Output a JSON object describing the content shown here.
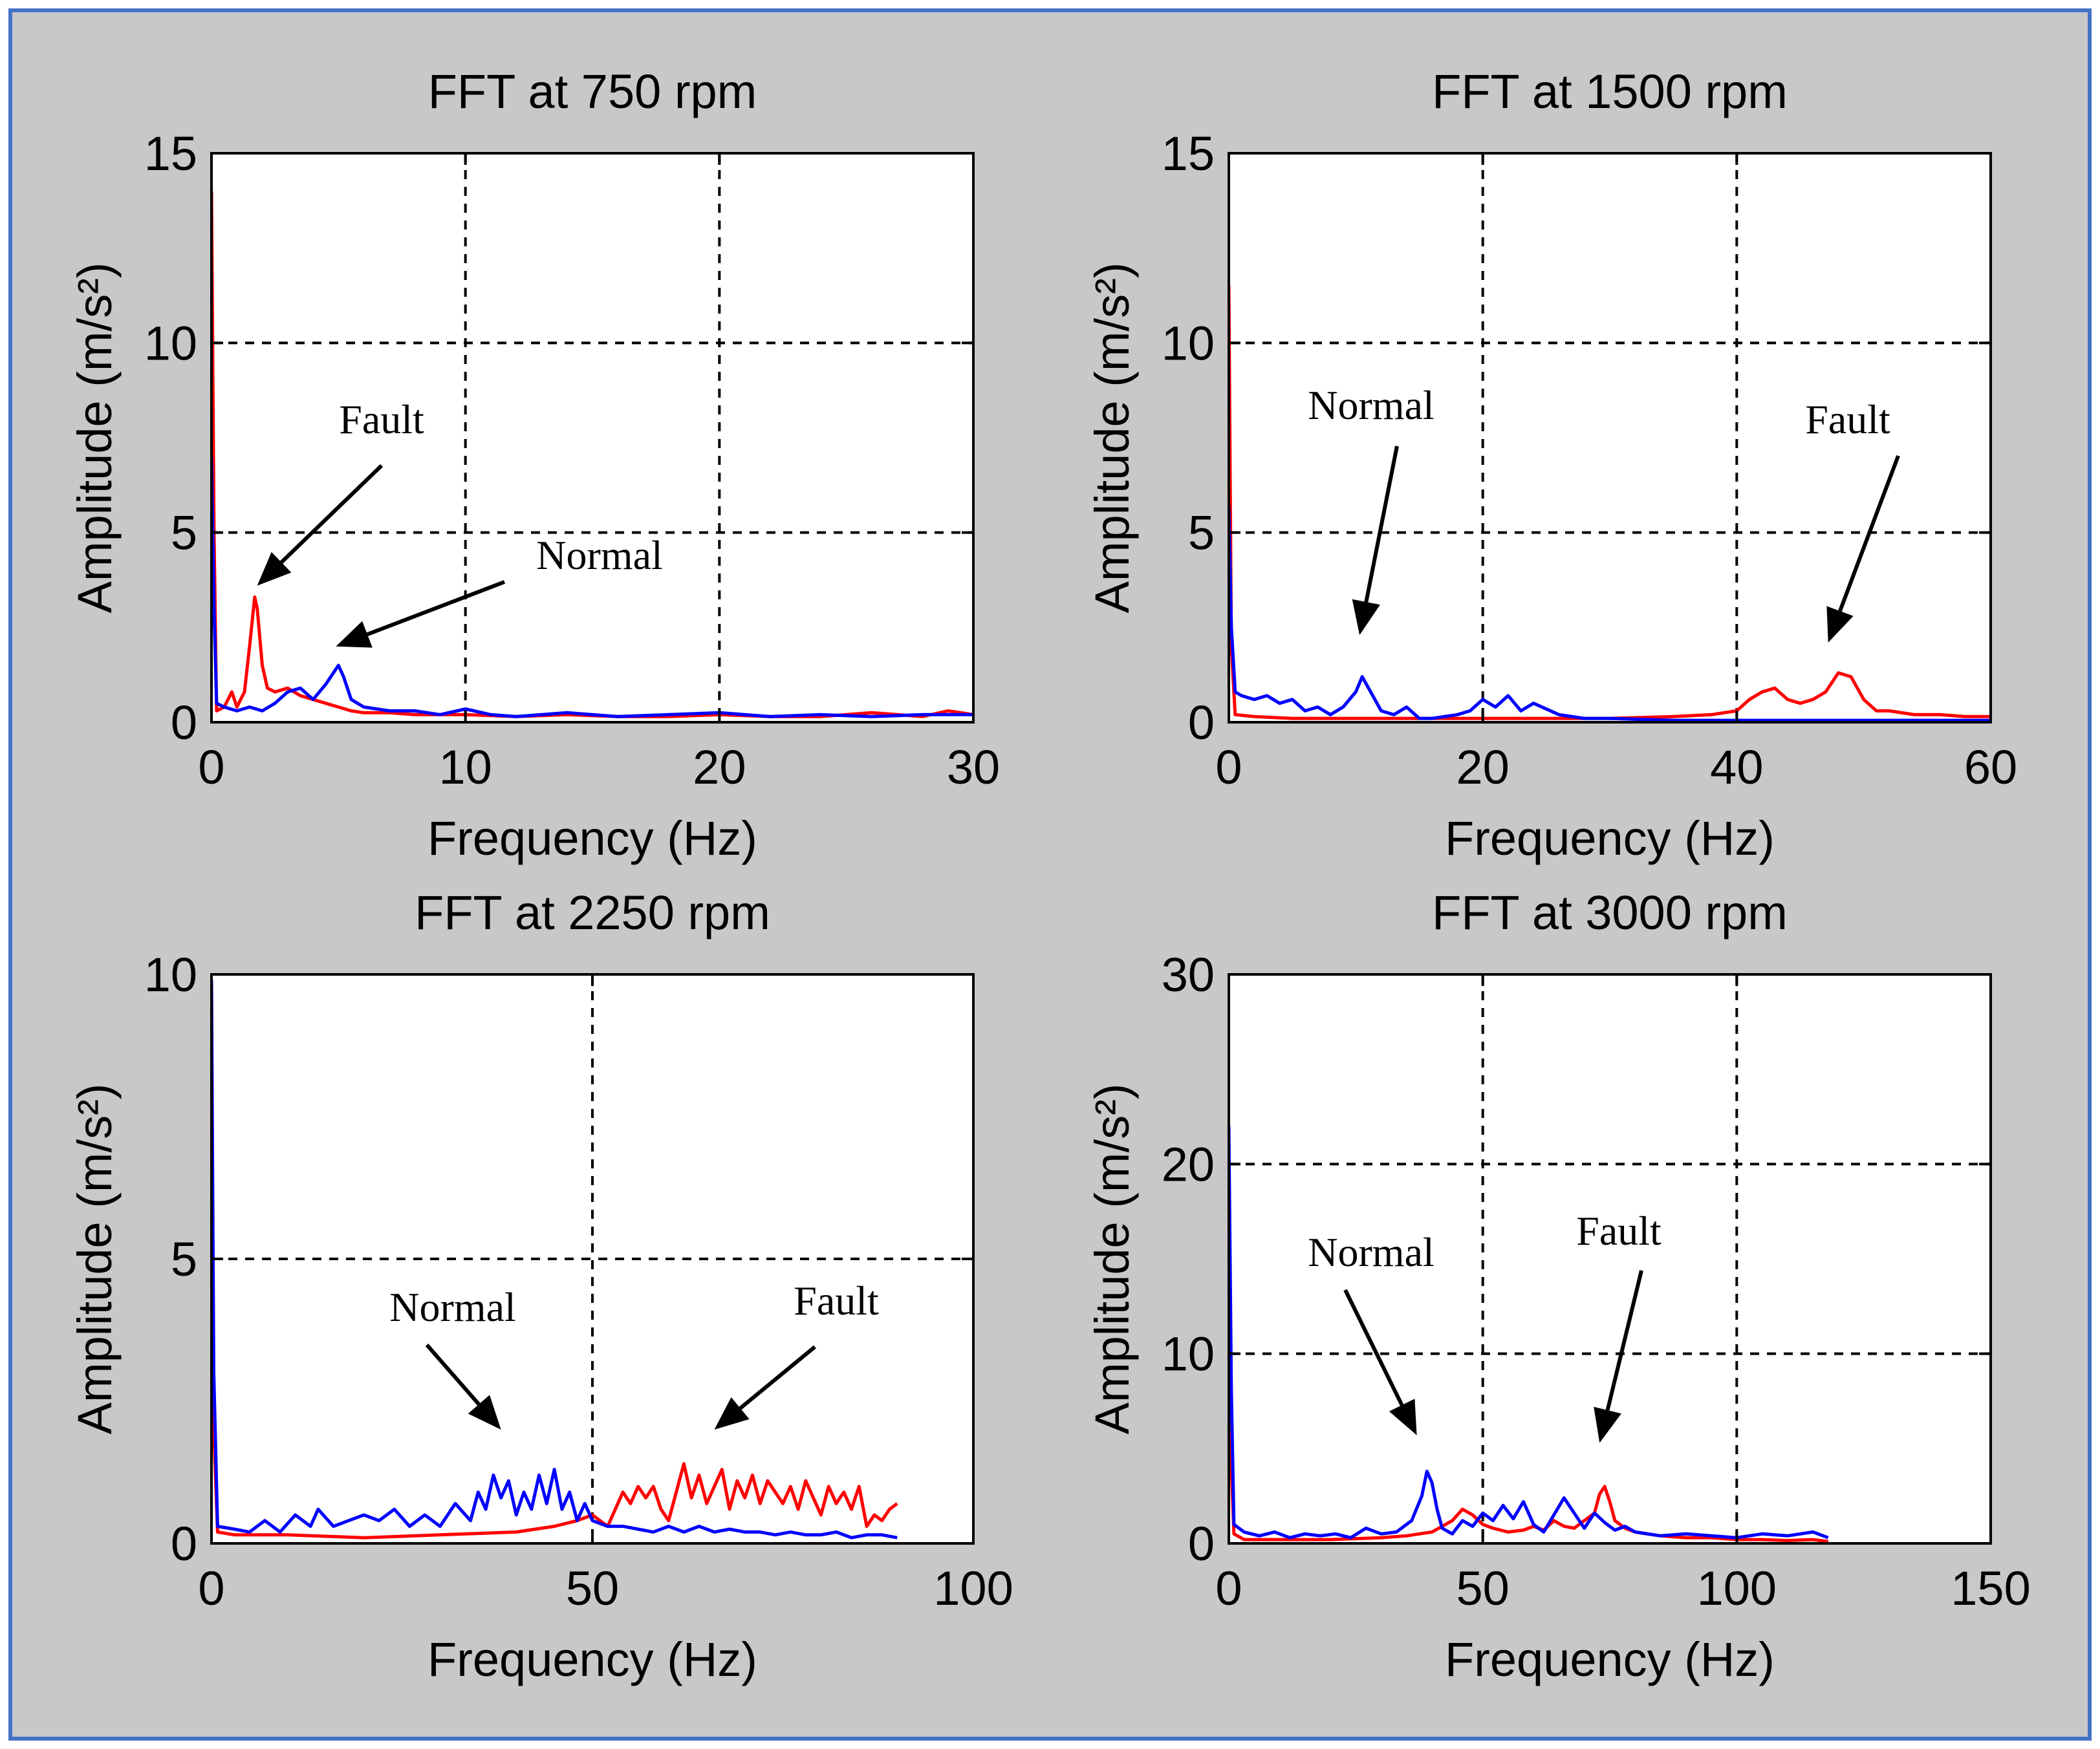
{
  "figure": {
    "background_color": "#c8c8c8",
    "frame_color": "#4472c4",
    "axes_background": "#ffffff"
  },
  "series_styles": {
    "normal": {
      "name": "Normal",
      "color": "#0000ff"
    },
    "fault": {
      "name": "Fault",
      "color": "#ff0000"
    }
  },
  "chart_data": [
    {
      "type": "line",
      "title": "FFT at 750 rpm",
      "xlabel": "Frequency (Hz)",
      "ylabel": "Amplitude (m/s²)",
      "xlim": [
        0,
        30
      ],
      "ylim": [
        0,
        15
      ],
      "xticks": [
        0,
        10,
        20,
        30
      ],
      "yticks": [
        0,
        5,
        10,
        15
      ],
      "grid": true,
      "series": [
        {
          "name": "Normal",
          "color": "#0000ff",
          "x": [
            0,
            0.1,
            0.2,
            0.5,
            1,
            1.5,
            2,
            2.5,
            3,
            3.5,
            4,
            4.5,
            4.8,
            5,
            5.2,
            5.5,
            6,
            7,
            8,
            9,
            10,
            11,
            12,
            14,
            16,
            18,
            20,
            22,
            24,
            26,
            28,
            30
          ],
          "y": [
            7,
            3,
            0.5,
            0.4,
            0.3,
            0.4,
            0.3,
            0.5,
            0.8,
            0.9,
            0.6,
            1,
            1.3,
            1.5,
            1.2,
            0.6,
            0.4,
            0.3,
            0.3,
            0.2,
            0.35,
            0.2,
            0.15,
            0.25,
            0.15,
            0.2,
            0.25,
            0.15,
            0.2,
            0.15,
            0.2,
            0.2
          ]
        },
        {
          "name": "Fault",
          "color": "#ff0000",
          "x": [
            0,
            0.1,
            0.2,
            0.5,
            0.8,
            1,
            1.3,
            1.5,
            1.7,
            1.8,
            2,
            2.2,
            2.5,
            3,
            3.5,
            4,
            4.5,
            5,
            5.5,
            6,
            7,
            8,
            10,
            12,
            14,
            16,
            18,
            20,
            22,
            24,
            26,
            28,
            29,
            30
          ],
          "y": [
            14,
            5,
            0.3,
            0.4,
            0.8,
            0.4,
            0.8,
            2,
            3.3,
            3,
            1.5,
            0.9,
            0.8,
            0.9,
            0.7,
            0.6,
            0.5,
            0.4,
            0.3,
            0.25,
            0.25,
            0.2,
            0.2,
            0.15,
            0.2,
            0.15,
            0.15,
            0.2,
            0.15,
            0.15,
            0.25,
            0.15,
            0.3,
            0.2
          ]
        }
      ],
      "annotations": [
        {
          "text": "Fault",
          "target": [
            1.8,
            3.6
          ]
        },
        {
          "text": "Normal",
          "target": [
            4.9,
            2.0
          ]
        }
      ]
    },
    {
      "type": "line",
      "title": "FFT at 1500 rpm",
      "xlabel": "Frequency (Hz)",
      "ylabel": "Amplitude (m/s²)",
      "xlim": [
        0,
        60
      ],
      "ylim": [
        0,
        15
      ],
      "xticks": [
        0,
        20,
        40,
        60
      ],
      "yticks": [
        0,
        5,
        10,
        15
      ],
      "grid": true,
      "series": [
        {
          "name": "Normal",
          "color": "#0000ff",
          "x": [
            0,
            0.2,
            0.5,
            1,
            2,
            3,
            4,
            5,
            6,
            7,
            8,
            9,
            10,
            10.5,
            11,
            12,
            13,
            14,
            15,
            16,
            18,
            19,
            20,
            21,
            22,
            23,
            24,
            26,
            28,
            30,
            35,
            40,
            45,
            50,
            55,
            60
          ],
          "y": [
            5.7,
            2.5,
            0.8,
            0.7,
            0.6,
            0.7,
            0.5,
            0.6,
            0.3,
            0.4,
            0.2,
            0.4,
            0.8,
            1.2,
            0.9,
            0.3,
            0.2,
            0.4,
            0.1,
            0.1,
            0.2,
            0.3,
            0.6,
            0.4,
            0.7,
            0.3,
            0.5,
            0.2,
            0.1,
            0.1,
            0.05,
            0.05,
            0.05,
            0.05,
            0.05,
            0.05
          ]
        },
        {
          "name": "Fault",
          "color": "#ff0000",
          "x": [
            0,
            0.2,
            0.5,
            2,
            5,
            10,
            15,
            20,
            25,
            30,
            35,
            38,
            40,
            41,
            42,
            43,
            44,
            45,
            46,
            47,
            48,
            49,
            50,
            51,
            52,
            54,
            56,
            58,
            60
          ],
          "y": [
            11.5,
            2,
            0.2,
            0.15,
            0.1,
            0.1,
            0.1,
            0.1,
            0.1,
            0.1,
            0.15,
            0.2,
            0.3,
            0.6,
            0.8,
            0.9,
            0.6,
            0.5,
            0.6,
            0.8,
            1.3,
            1.2,
            0.6,
            0.3,
            0.3,
            0.2,
            0.2,
            0.15,
            0.15
          ]
        }
      ],
      "annotations": [
        {
          "text": "Normal",
          "target": [
            10.3,
            2.3
          ]
        },
        {
          "text": "Fault",
          "target": [
            47.2,
            2.1
          ]
        }
      ]
    },
    {
      "type": "line",
      "title": "FFT at 2250 rpm",
      "xlabel": "Frequency (Hz)",
      "ylabel": "Amplitude (m/s²)",
      "xlim": [
        0,
        100
      ],
      "ylim": [
        0,
        10
      ],
      "xticks": [
        0,
        50,
        100
      ],
      "yticks": [
        0,
        5,
        10
      ],
      "grid": true,
      "series": [
        {
          "name": "Normal",
          "color": "#0000ff",
          "x": [
            0,
            0.3,
            0.8,
            3,
            5,
            7,
            9,
            11,
            13,
            14,
            16,
            18,
            20,
            22,
            24,
            26,
            28,
            30,
            32,
            34,
            35,
            36,
            37,
            38,
            39,
            40,
            41,
            42,
            43,
            44,
            45,
            46,
            47,
            48,
            49,
            50,
            52,
            54,
            56,
            58,
            60,
            62,
            64,
            66,
            68,
            70,
            72,
            74,
            76,
            78,
            80,
            82,
            84,
            86,
            88,
            90
          ],
          "y": [
            9.9,
            3,
            0.3,
            0.25,
            0.2,
            0.4,
            0.2,
            0.5,
            0.3,
            0.6,
            0.3,
            0.4,
            0.5,
            0.4,
            0.6,
            0.3,
            0.5,
            0.3,
            0.7,
            0.4,
            0.9,
            0.6,
            1.2,
            0.8,
            1.1,
            0.5,
            0.9,
            0.6,
            1.2,
            0.7,
            1.3,
            0.6,
            0.9,
            0.4,
            0.7,
            0.4,
            0.3,
            0.3,
            0.25,
            0.2,
            0.3,
            0.2,
            0.3,
            0.2,
            0.25,
            0.2,
            0.2,
            0.15,
            0.2,
            0.15,
            0.15,
            0.2,
            0.1,
            0.15,
            0.15,
            0.1
          ]
        },
        {
          "name": "Fault",
          "color": "#ff0000",
          "x": [
            0,
            0.3,
            0.8,
            3,
            10,
            20,
            30,
            40,
            45,
            48,
            50,
            52,
            54,
            55,
            56,
            57,
            58,
            59,
            60,
            61,
            62,
            63,
            64,
            65,
            66,
            67,
            68,
            69,
            70,
            71,
            72,
            73,
            74,
            75,
            76,
            77,
            78,
            79,
            80,
            81,
            82,
            83,
            84,
            85,
            86,
            87,
            88,
            89,
            90
          ],
          "y": [
            9.7,
            2,
            0.2,
            0.15,
            0.15,
            0.1,
            0.15,
            0.2,
            0.3,
            0.4,
            0.5,
            0.3,
            0.9,
            0.7,
            1,
            0.8,
            1,
            0.6,
            0.4,
            0.9,
            1.4,
            0.8,
            1.2,
            0.7,
            1.0,
            1.3,
            0.6,
            1.1,
            0.8,
            1.2,
            0.7,
            1.1,
            0.9,
            0.7,
            1.0,
            0.6,
            1.1,
            0.8,
            0.5,
            1.0,
            0.7,
            0.9,
            0.6,
            1.0,
            0.3,
            0.5,
            0.4,
            0.6,
            0.7
          ]
        }
      ],
      "annotations": [
        {
          "text": "Normal",
          "target": [
            38,
            2.0
          ]
        },
        {
          "text": "Fault",
          "target": [
            66,
            2.0
          ]
        }
      ]
    },
    {
      "type": "line",
      "title": "FFT at 3000 rpm",
      "xlabel": "Frequency (Hz)",
      "ylabel": "Amplitude (m/s²)",
      "xlim": [
        0,
        150
      ],
      "ylim": [
        0,
        30
      ],
      "xticks": [
        0,
        50,
        100,
        150
      ],
      "yticks": [
        0,
        10,
        20,
        30
      ],
      "grid": true,
      "series": [
        {
          "name": "Normal",
          "color": "#0000ff",
          "x": [
            0,
            0.5,
            1,
            3,
            6,
            9,
            12,
            15,
            18,
            21,
            24,
            27,
            30,
            33,
            36,
            38,
            39,
            40,
            41,
            42,
            44,
            46,
            48,
            50,
            52,
            54,
            56,
            58,
            60,
            62,
            64,
            66,
            68,
            70,
            72,
            74,
            76,
            78,
            80,
            85,
            90,
            95,
            100,
            105,
            110,
            115,
            118
          ],
          "y": [
            22,
            8,
            1,
            0.6,
            0.4,
            0.6,
            0.3,
            0.5,
            0.4,
            0.5,
            0.3,
            0.8,
            0.5,
            0.6,
            1.2,
            2.5,
            3.8,
            3.2,
            1.8,
            0.8,
            0.5,
            1.2,
            0.9,
            1.6,
            1.2,
            2,
            1.3,
            2.2,
            1.0,
            0.6,
            1.5,
            2.4,
            1.6,
            0.8,
            1.6,
            1.1,
            0.7,
            0.9,
            0.6,
            0.4,
            0.5,
            0.4,
            0.3,
            0.5,
            0.4,
            0.6,
            0.3
          ]
        },
        {
          "name": "Fault",
          "color": "#ff0000",
          "x": [
            0,
            0.5,
            1,
            3,
            10,
            20,
            30,
            35,
            40,
            44,
            46,
            48,
            50,
            52,
            55,
            58,
            60,
            62,
            64,
            66,
            68,
            70,
            72,
            73,
            74,
            75,
            76,
            78,
            80,
            85,
            90,
            95,
            100,
            105,
            110,
            115,
            118
          ],
          "y": [
            15,
            4,
            0.5,
            0.2,
            0.2,
            0.2,
            0.3,
            0.4,
            0.6,
            1.2,
            1.8,
            1.5,
            1.0,
            0.8,
            0.6,
            0.7,
            0.9,
            0.7,
            1.2,
            0.9,
            0.8,
            1.2,
            1.6,
            2.6,
            3.0,
            2.2,
            1.2,
            0.8,
            0.6,
            0.4,
            0.3,
            0.3,
            0.2,
            0.2,
            0.15,
            0.2,
            0.1
          ]
        }
      ],
      "annotations": [
        {
          "text": "Normal",
          "target": [
            37,
            5.7
          ]
        },
        {
          "text": "Fault",
          "target": [
            73,
            5.3
          ]
        }
      ]
    }
  ]
}
